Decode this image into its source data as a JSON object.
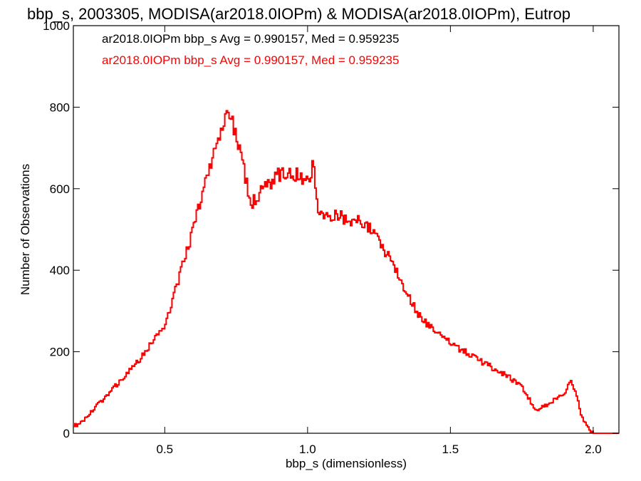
{
  "chart_data": {
    "type": "bar",
    "style": "step-histogram",
    "title": "bbp_s, 2003305, MODISA(ar2018.0IOPm) & MODISA(ar2018.0IOPm), Eutrop",
    "xlabel": "bbp_s (dimensionless)",
    "ylabel": "Number of Observations",
    "xlim": [
      0.18,
      2.09
    ],
    "ylim": [
      0,
      1000
    ],
    "xticks": [
      0.5,
      1.0,
      1.5,
      2.0
    ],
    "xtick_labels": [
      "0.5",
      "1.0",
      "1.5",
      "2.0"
    ],
    "yticks": [
      0,
      200,
      400,
      600,
      800,
      1000
    ],
    "ytick_labels": [
      "0",
      "200",
      "400",
      "600",
      "800",
      "1000"
    ],
    "grid": false,
    "legend_position": "top-left",
    "annotations": [
      {
        "text": "ar2018.0IOPm bbp_s Avg = 0.990157, Med = 0.959235",
        "color": "#000000"
      },
      {
        "text": "ar2018.0IOPm bbp_s Avg = 0.990157, Med = 0.959235",
        "color": "#ff0000"
      }
    ],
    "series": [
      {
        "color": "#ff0000",
        "x": [
          0.2,
          0.3,
          0.4,
          0.5,
          0.55,
          0.6,
          0.65,
          0.7,
          0.72,
          0.74,
          0.76,
          0.78,
          0.8,
          0.85,
          0.9,
          0.95,
          1.0,
          1.02,
          1.04,
          1.06,
          1.1,
          1.15,
          1.2,
          1.25,
          1.3,
          1.35,
          1.4,
          1.5,
          1.6,
          1.7,
          1.75,
          1.8,
          1.85,
          1.9,
          1.92,
          1.94,
          1.96,
          1.98,
          2.0,
          2.05,
          2.09
        ],
        "values": [
          20,
          95,
          170,
          265,
          380,
          500,
          640,
          740,
          790,
          760,
          700,
          640,
          560,
          600,
          635,
          640,
          620,
          660,
          540,
          530,
          540,
          520,
          520,
          470,
          420,
          340,
          280,
          220,
          180,
          140,
          115,
          55,
          75,
          100,
          130,
          100,
          40,
          15,
          0,
          0,
          0
        ]
      },
      {
        "color": "#000000",
        "x": [
          0.2,
          0.3,
          0.4,
          0.5,
          0.55,
          0.6,
          0.65,
          0.7,
          0.72,
          0.74,
          0.76,
          0.78,
          0.8,
          0.85,
          0.9,
          0.95,
          1.0,
          1.02,
          1.04,
          1.06,
          1.1,
          1.15,
          1.2,
          1.25,
          1.3,
          1.35,
          1.4,
          1.5,
          1.6,
          1.7,
          1.75,
          1.8,
          1.85,
          1.9,
          1.92,
          1.94,
          1.96,
          1.98,
          2.0,
          2.05,
          2.09
        ],
        "values": [
          20,
          95,
          170,
          265,
          380,
          500,
          640,
          740,
          790,
          760,
          700,
          640,
          560,
          600,
          635,
          640,
          620,
          660,
          540,
          530,
          540,
          520,
          520,
          470,
          420,
          340,
          280,
          220,
          180,
          140,
          115,
          55,
          75,
          100,
          130,
          100,
          40,
          15,
          0,
          0,
          0
        ]
      }
    ]
  }
}
